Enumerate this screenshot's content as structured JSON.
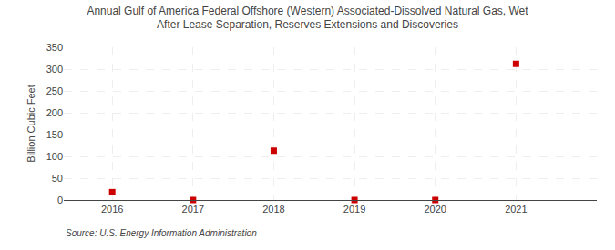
{
  "chart_data": {
    "type": "scatter",
    "title": "Annual Gulf of America Federal Offshore (Western) Associated-Dissolved Natural Gas, Wet",
    "subtitle": "After Lease Separation, Reserves Extensions and Discoveries",
    "y_label": "Billion Cubic Feet",
    "annotations": [
      "Source: U.S. Energy Information Administration"
    ],
    "x": [
      2016,
      2017,
      2018,
      2019,
      2020,
      2021
    ],
    "values": [
      18,
      0,
      113,
      0,
      0,
      312
    ],
    "color": "#cc0000",
    "marker": "square",
    "xlim": [
      2015.4,
      2022
    ],
    "xticks": [
      2016,
      2017,
      2018,
      2019,
      2020,
      2021
    ],
    "ylim": [
      0,
      350
    ],
    "yticks": [
      0,
      50,
      100,
      150,
      200,
      250,
      300,
      350
    ],
    "grid": true
  }
}
